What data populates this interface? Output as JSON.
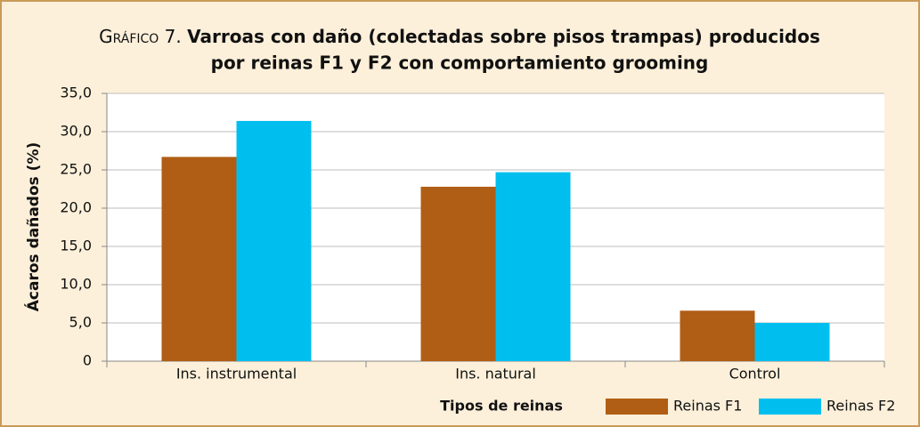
{
  "chart_data": {
    "type": "bar",
    "title_prefix": "Gráfico 7.",
    "title_lines": [
      "Varroas con daño (colectadas sobre pisos trampas) producidos",
      "por reinas F1 y F2  con comportamiento grooming"
    ],
    "y_label": "Ácaros dañados (%)",
    "x_label": "Tipos de reinas",
    "categories": [
      "Ins. instrumental",
      "Ins. natural",
      "Control"
    ],
    "series": [
      {
        "name": "Reinas F1",
        "color": "#b05e15",
        "values": [
          26.7,
          22.8,
          6.6
        ]
      },
      {
        "name": "Reinas F2",
        "color": "#00bfef",
        "values": [
          31.4,
          24.7,
          5.0
        ]
      }
    ],
    "ylim": [
      0,
      35
    ],
    "yticks": [
      0,
      {
        "value": 5,
        "label": "5,0"
      },
      {
        "value": 10,
        "label": "10,0"
      },
      {
        "value": 15,
        "label": "15,0"
      },
      {
        "value": 20,
        "label": "20,0"
      },
      {
        "value": 25,
        "label": "25,0"
      },
      {
        "value": 30,
        "label": "30,0"
      },
      {
        "value": 35,
        "label": "35,0"
      }
    ],
    "grid": true
  }
}
